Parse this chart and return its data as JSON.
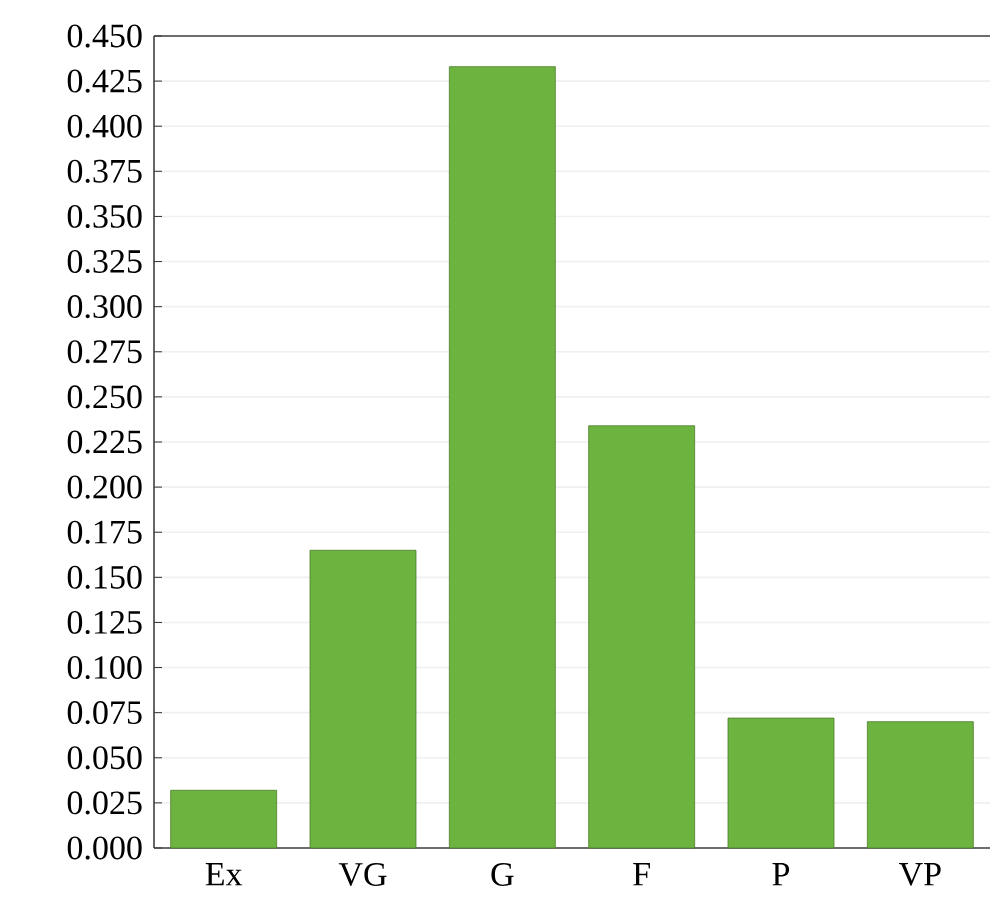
{
  "chart_data": {
    "type": "bar",
    "categories": [
      "Ex",
      "VG",
      "G",
      "F",
      "P",
      "VP"
    ],
    "values": [
      0.032,
      0.165,
      0.433,
      0.234,
      0.072,
      0.07
    ],
    "color": "#6db33f",
    "ylim": [
      0,
      0.45
    ],
    "yticks": [
      {
        "value": 0,
        "label": "0.000"
      },
      {
        "value": 0.025,
        "label": "0.025"
      },
      {
        "value": 0.05,
        "label": "0.050"
      },
      {
        "value": 0.075,
        "label": "0.075"
      },
      {
        "value": 0.1,
        "label": "0.100"
      },
      {
        "value": 0.125,
        "label": "0.125"
      },
      {
        "value": 0.15,
        "label": "0.150"
      },
      {
        "value": 0.175,
        "label": "0.175"
      },
      {
        "value": 0.2,
        "label": "0.200"
      },
      {
        "value": 0.225,
        "label": "0.225"
      },
      {
        "value": 0.25,
        "label": "0.250"
      },
      {
        "value": 0.275,
        "label": "0.275"
      },
      {
        "value": 0.3,
        "label": "0.300"
      },
      {
        "value": 0.325,
        "label": "0.325"
      },
      {
        "value": 0.35,
        "label": "0.350"
      },
      {
        "value": 0.375,
        "label": "0.375"
      },
      {
        "value": 0.4,
        "label": "0.400"
      },
      {
        "value": 0.425,
        "label": "0.425"
      },
      {
        "value": 0.45,
        "label": "0.450"
      }
    ],
    "grid": "y"
  }
}
